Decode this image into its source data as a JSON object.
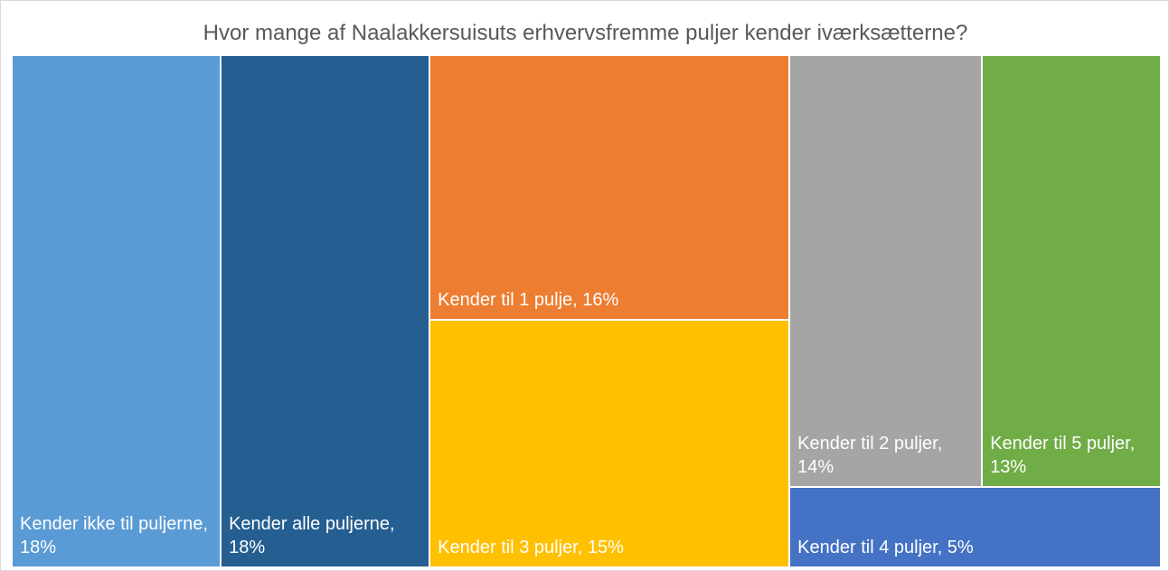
{
  "chart_data": {
    "type": "treemap",
    "title": "Hvor mange af Naalakkersuisuts erhvervsfremme puljer kender iværksætterne?",
    "labels": [
      "Kender ikke til puljerne, 18%",
      "Kender alle puljerne, 18%",
      "Kender til 1 pulje, 16%",
      "Kender til 3 puljer, 15%",
      "Kender til 2 puljer, 14%",
      "Kender til 5 puljer, 13%",
      "Kender til 4 puljer, 5%"
    ],
    "values": [
      18,
      18,
      16,
      15,
      14,
      13,
      5
    ],
    "colors": [
      "#5b9bd5",
      "#255e91",
      "#ed7d31",
      "#ffc000",
      "#a5a5a5",
      "#70ad47",
      "#4472c4"
    ]
  }
}
